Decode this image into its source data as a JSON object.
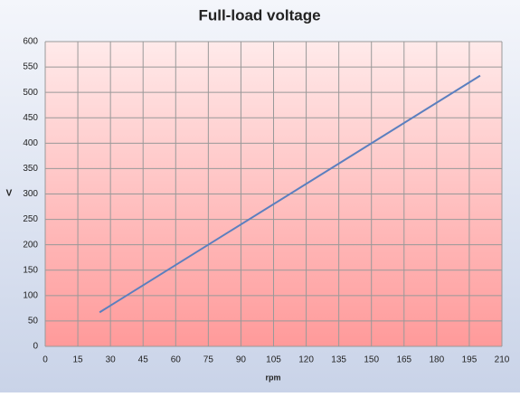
{
  "chart_data": {
    "type": "line",
    "title": "Full-load voltage",
    "x_label": "rpm",
    "y_label": "V",
    "x": [
      25,
      200
    ],
    "series": [
      {
        "name": "V",
        "color": "#5b7fbf",
        "values": [
          67,
          533
        ]
      }
    ],
    "xlim": [
      0,
      210
    ],
    "xticks": [
      0,
      15,
      30,
      45,
      60,
      75,
      90,
      105,
      120,
      135,
      150,
      165,
      180,
      195,
      210
    ],
    "ylim": [
      0,
      600
    ],
    "yticks": [
      0,
      50,
      100,
      150,
      200,
      250,
      300,
      350,
      400,
      450,
      500,
      550,
      600
    ],
    "grid": true
  }
}
